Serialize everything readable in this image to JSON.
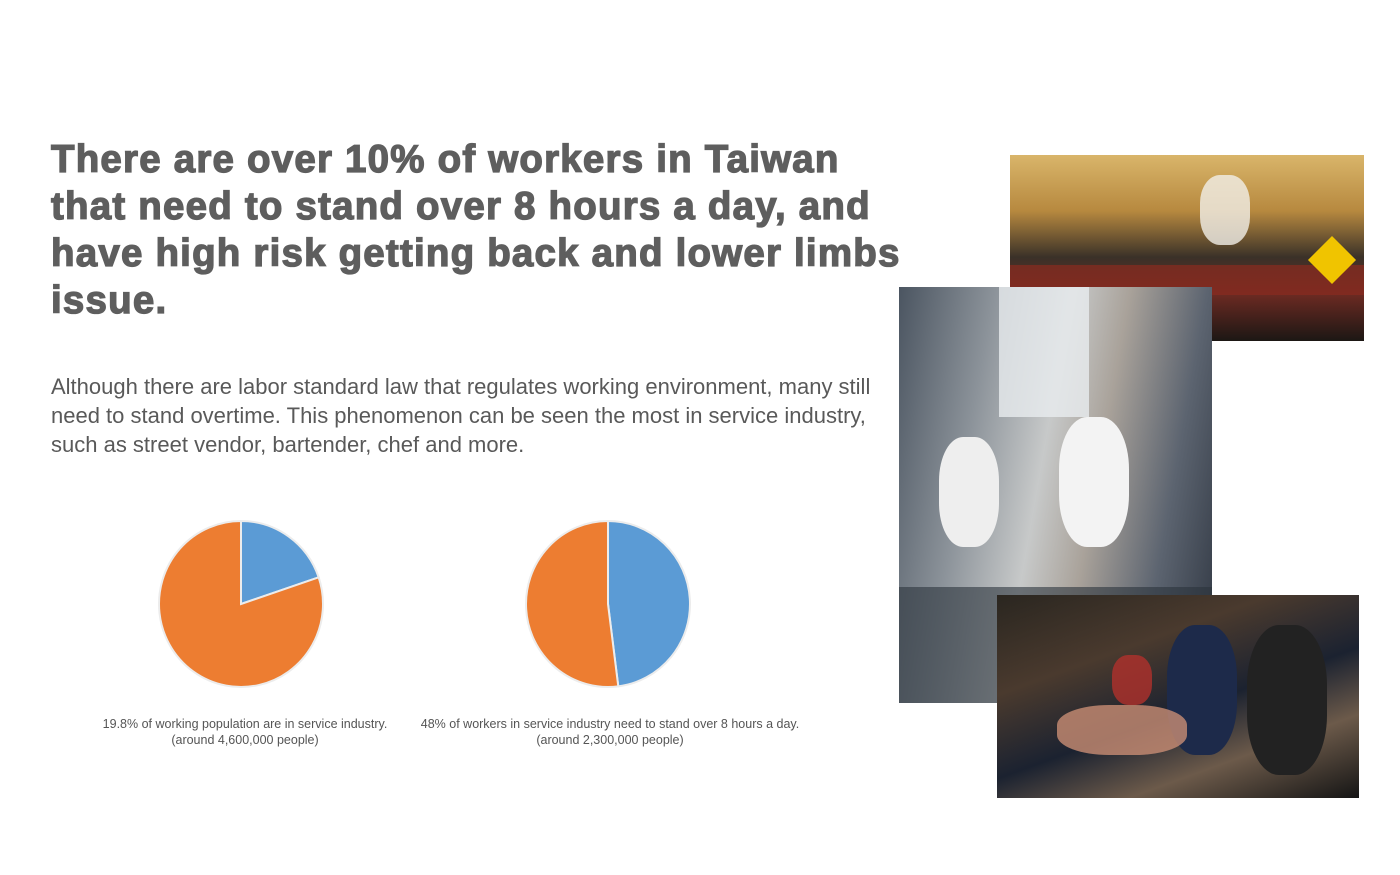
{
  "headline": "There are over 10% of workers in Taiwan that need to stand over 8 hours a day, and have high risk getting back and lower limbs issue.",
  "body": "Although there are labor standard law that regulates working environment, many still need to stand overtime. This phenomenon can be seen the most in service industry, such as street vendor, bartender, chef and more.",
  "colors": {
    "blue": "#5B9BD5",
    "orange": "#ED7D31",
    "text": "#5e5e5e"
  },
  "photos": [
    {
      "subject": "street-vendor"
    },
    {
      "subject": "bartender"
    },
    {
      "subject": "chef"
    }
  ],
  "chart_data": [
    {
      "type": "pie",
      "caption_line1": "19.8% of working population are in service industry.",
      "caption_line2": "(around 4,600,000 people)",
      "slices": [
        {
          "value": 19.8,
          "color": "#5B9BD5"
        },
        {
          "value": 80.2,
          "color": "#ED7D31"
        }
      ]
    },
    {
      "type": "pie",
      "caption_line1": "48% of workers in service industry need to stand over 8 hours a day.",
      "caption_line2": "(around 2,300,000 people)",
      "slices": [
        {
          "value": 48,
          "color": "#5B9BD5"
        },
        {
          "value": 52,
          "color": "#ED7D31"
        }
      ]
    }
  ]
}
